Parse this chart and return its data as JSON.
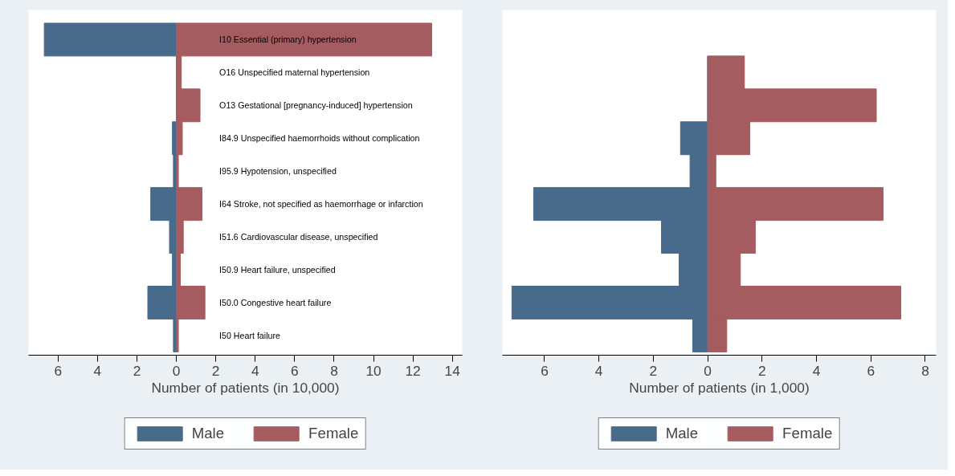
{
  "chart_data": [
    {
      "type": "bar",
      "orientation": "horizontal",
      "stacked": true,
      "xlabel": "Number of patients (in 10,000)",
      "categories": [
        "I10 Essential (primary) hypertension",
        "O16 Unspecified maternal hypertension",
        "O13 Gestational [pregnancy-induced] hypertension",
        "I84.9 Unspecified haemorrhoids without complication",
        "I95.9 Hypotension, unspecified",
        "I64 Stroke, not specified as haemorrhage or infarction",
        "I51.6 Cardiovascular disease, unspecified",
        "I50.9 Heart failure, unspecified",
        "I50.0 Congestive heart failure",
        "I50 Heart failure"
      ],
      "series": [
        {
          "name": "Male",
          "color": "#486b8c",
          "values": [
            -6.7,
            0,
            0,
            -0.2,
            -0.15,
            -1.3,
            -0.35,
            -0.2,
            -1.45,
            -0.15
          ]
        },
        {
          "name": "Female",
          "color": "#a55c60",
          "values": [
            12.95,
            0.25,
            1.2,
            0.3,
            0.1,
            1.3,
            0.35,
            0.2,
            1.45,
            0.1
          ]
        }
      ],
      "xlim": [
        -7.5,
        14.5
      ],
      "xticks": [
        {
          "value": -6,
          "label": "6"
        },
        {
          "value": -4,
          "label": "4"
        },
        {
          "value": -2,
          "label": "2"
        },
        0,
        2,
        4,
        6,
        8,
        10,
        12,
        14
      ],
      "tick_labels": "x",
      "grid": false,
      "legend": "bottom"
    },
    {
      "type": "bar",
      "orientation": "horizontal",
      "stacked": true,
      "xlabel": "Number of patients (in 1,000)",
      "categories": [
        null,
        null,
        null,
        null,
        null,
        null,
        null,
        null,
        null,
        null
      ],
      "series": [
        {
          "name": "Male",
          "color": "#486b8c",
          "values": [
            null,
            0,
            0,
            -1.0,
            -0.65,
            -6.4,
            -1.7,
            -1.05,
            -7.2,
            -0.55
          ]
        },
        {
          "name": "Female",
          "color": "#a55c60",
          "values": [
            null,
            1.35,
            6.2,
            1.55,
            0.3,
            6.45,
            1.75,
            1.2,
            7.1,
            0.7
          ]
        }
      ],
      "xlim": [
        -7.55,
        8.4
      ],
      "xticks": [
        {
          "value": -6,
          "label": "6"
        },
        {
          "value": -4,
          "label": "4"
        },
        {
          "value": -2,
          "label": "2"
        },
        0,
        2,
        4,
        6,
        8
      ],
      "tick_labels": "x",
      "grid": false,
      "legend": "bottom"
    }
  ]
}
